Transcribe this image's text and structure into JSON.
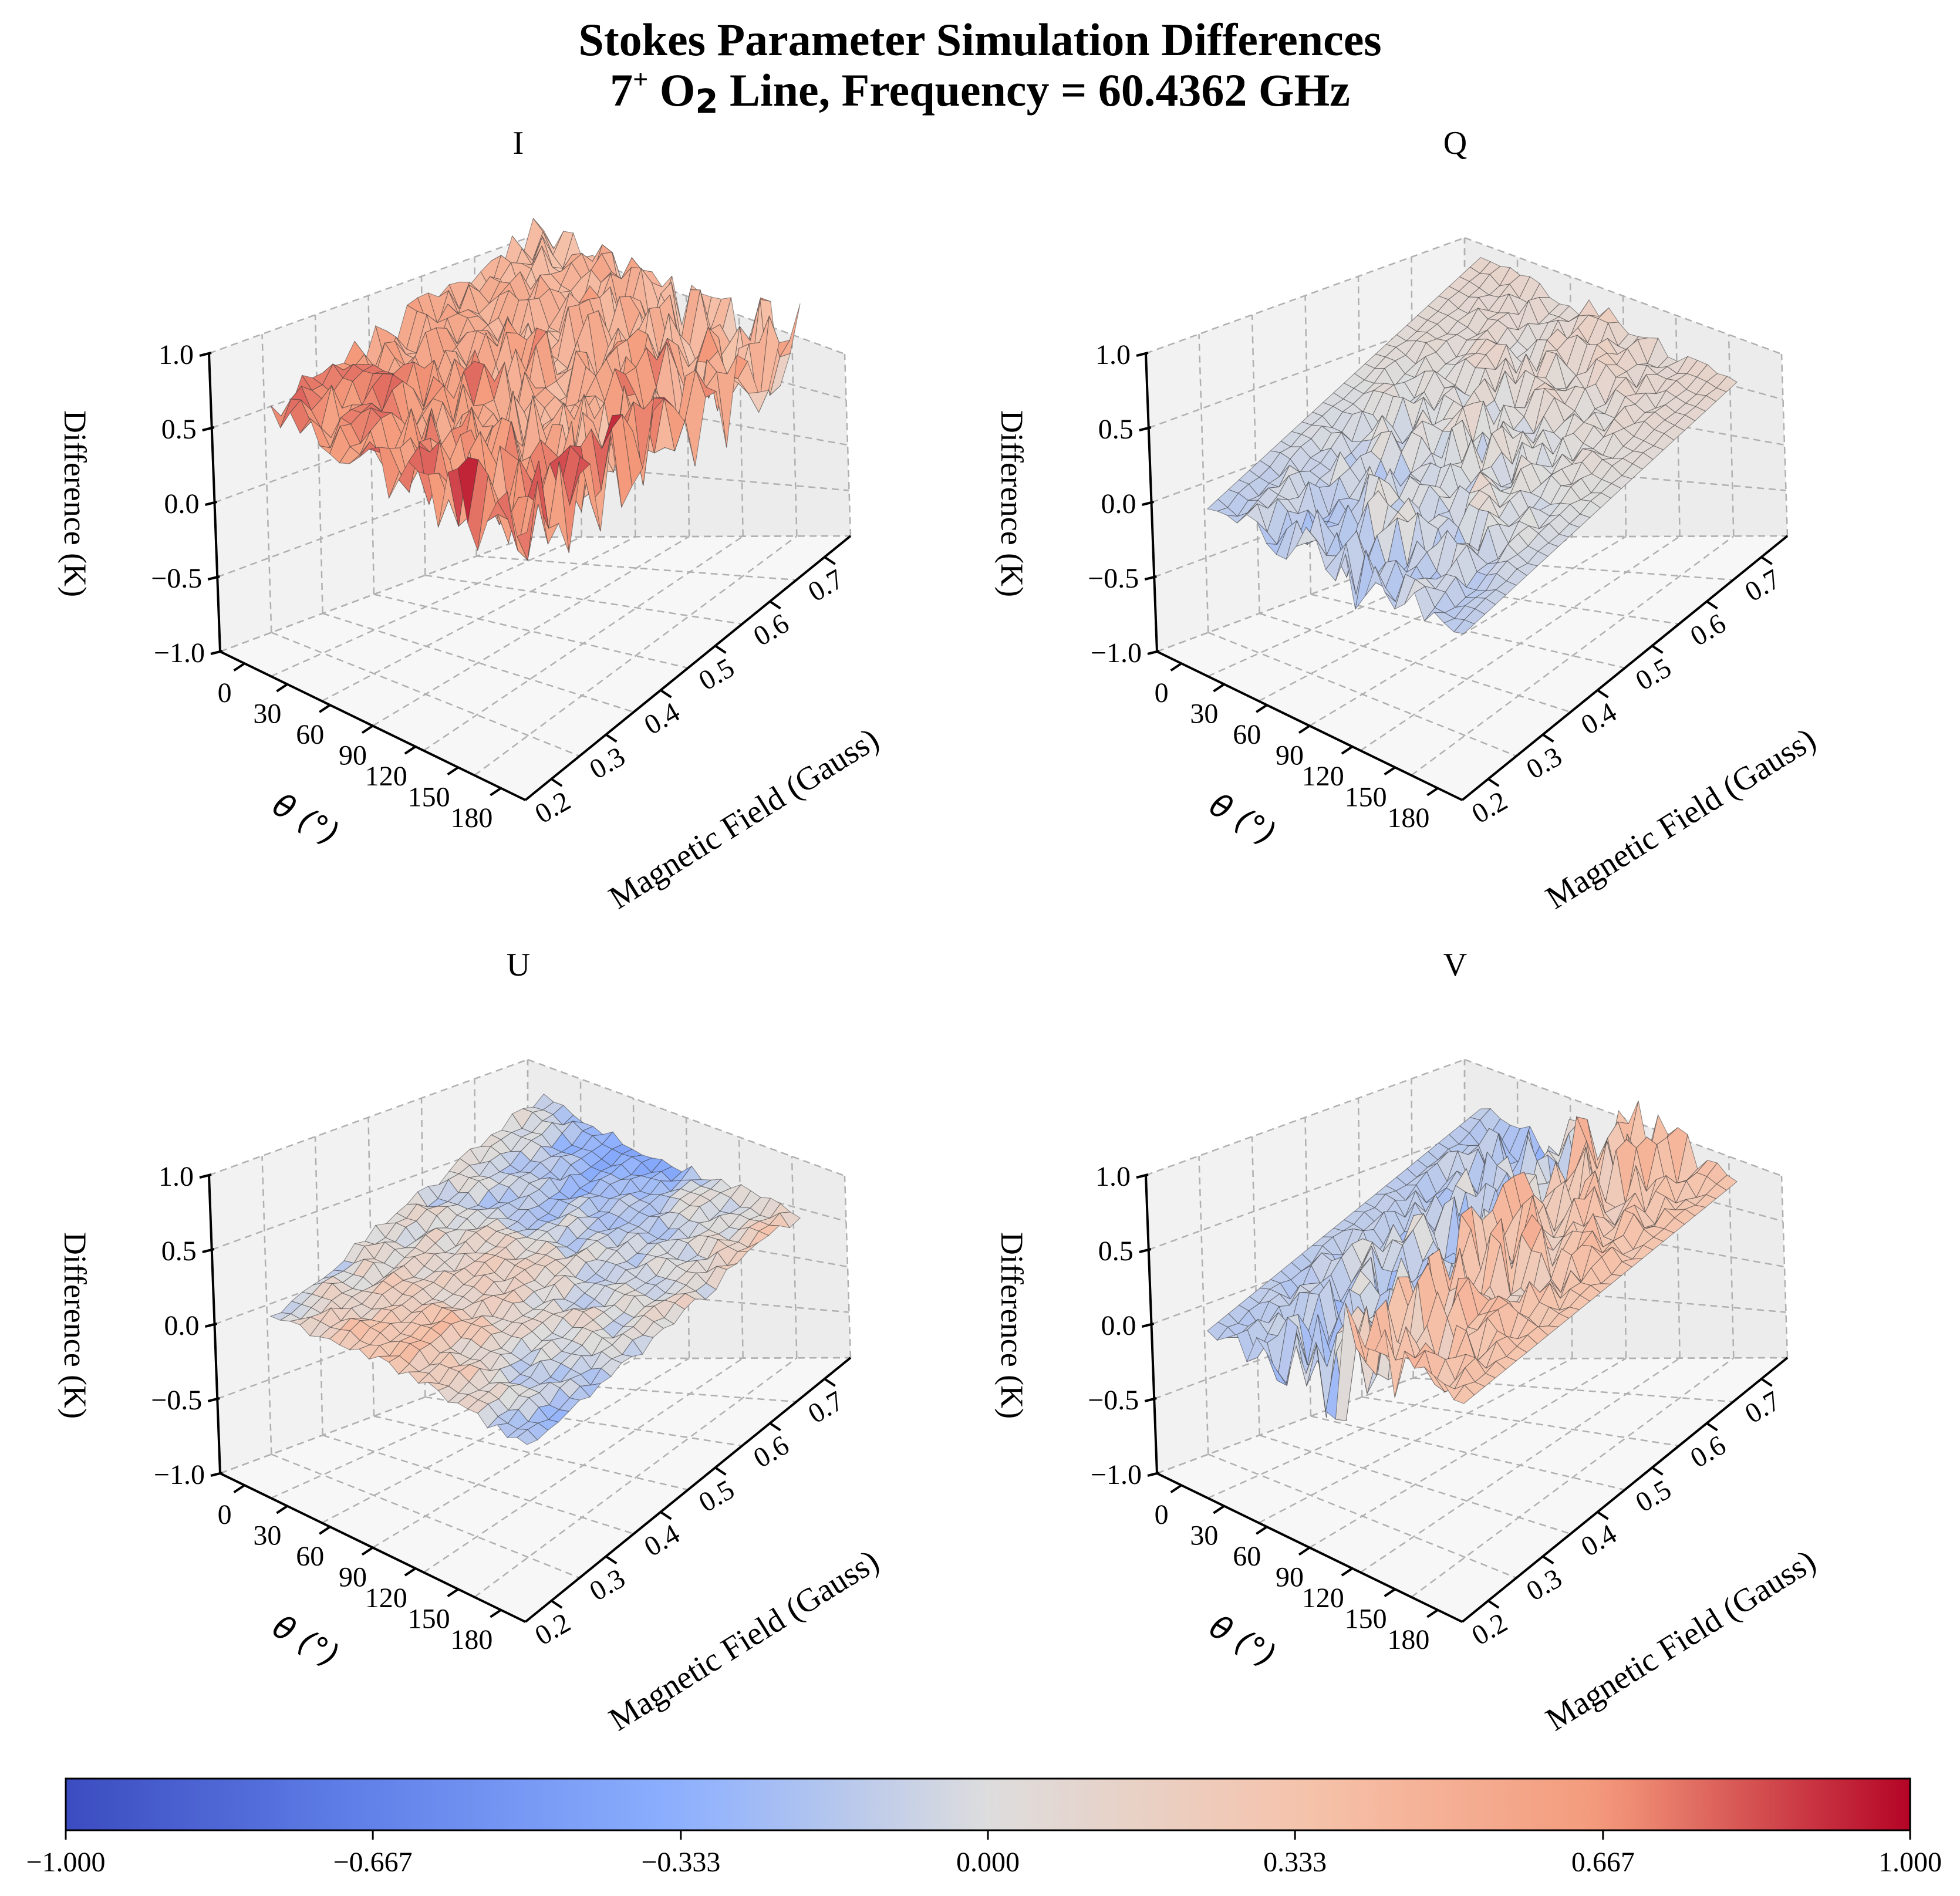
{
  "figure": {
    "title_line1": "Stokes Parameter Simulation Differences",
    "title_line2_pre": "7",
    "title_line2_sup": "+",
    "title_line2_mol": " O",
    "title_line2_sub": "2",
    "title_line2_post": " Line, Frequency = 60.4362 GHz"
  },
  "colors": {
    "neg": "#3b4cc0",
    "mid": "#dddddd",
    "pos": "#b40426"
  },
  "chart_data": [
    {
      "type": "surface3d",
      "title": "I",
      "xlabel": "Magnetic Field (Gauss)",
      "ylabel": "θ (°)",
      "zlabel": "Difference (K)",
      "x_ticks": [
        "0.2",
        "0.3",
        "0.4",
        "0.5",
        "0.6",
        "0.7"
      ],
      "y_ticks": [
        "0",
        "30",
        "60",
        "90",
        "120",
        "150",
        "180"
      ],
      "z_ticks": [
        "−1.0",
        "−0.5",
        "0.0",
        "0.5",
        "1.0"
      ],
      "xlim": [
        0.15,
        0.75
      ],
      "ylim": [
        0,
        180
      ],
      "zlim": [
        -1,
        1
      ],
      "surface_mean": 0.42,
      "surface_noise": 0.28
    },
    {
      "type": "surface3d",
      "title": "Q",
      "xlabel": "Magnetic Field (Gauss)",
      "ylabel": "θ (°)",
      "zlabel": "Difference (K)",
      "x_ticks": [
        "0.2",
        "0.3",
        "0.4",
        "0.5",
        "0.6",
        "0.7"
      ],
      "y_ticks": [
        "0",
        "30",
        "60",
        "90",
        "120",
        "150",
        "180"
      ],
      "z_ticks": [
        "−1.0",
        "−0.5",
        "0.0",
        "0.5",
        "1.0"
      ],
      "xlim": [
        0.15,
        0.75
      ],
      "ylim": [
        0,
        180
      ],
      "zlim": [
        -1,
        1
      ],
      "surface_mean": 0.0,
      "surface_noise": 0.22
    },
    {
      "type": "surface3d",
      "title": "U",
      "xlabel": "Magnetic Field (Gauss)",
      "ylabel": "θ (°)",
      "zlabel": "Difference (K)",
      "x_ticks": [
        "0.2",
        "0.3",
        "0.4",
        "0.5",
        "0.6",
        "0.7"
      ],
      "y_ticks": [
        "0",
        "30",
        "60",
        "90",
        "120",
        "150",
        "180"
      ],
      "z_ticks": [
        "−1.0",
        "−0.5",
        "0.0",
        "0.5",
        "1.0"
      ],
      "xlim": [
        0.15,
        0.75
      ],
      "ylim": [
        0,
        180
      ],
      "zlim": [
        -1,
        1
      ],
      "surface_mean": 0.0,
      "surface_noise": 0.04
    },
    {
      "type": "surface3d",
      "title": "V",
      "xlabel": "Magnetic Field (Gauss)",
      "ylabel": "θ (°)",
      "zlabel": "Difference (K)",
      "x_ticks": [
        "0.2",
        "0.3",
        "0.4",
        "0.5",
        "0.6",
        "0.7"
      ],
      "y_ticks": [
        "0",
        "30",
        "60",
        "90",
        "120",
        "150",
        "180"
      ],
      "z_ticks": [
        "−1.0",
        "−0.5",
        "0.0",
        "0.5",
        "1.0"
      ],
      "xlim": [
        0.15,
        0.75
      ],
      "ylim": [
        0,
        180
      ],
      "zlim": [
        -1,
        1
      ],
      "surface_mean": 0.0,
      "surface_noise": 0.3
    }
  ],
  "colorbar": {
    "ticks": [
      "−1.000",
      "−0.667",
      "−0.333",
      "0.000",
      "0.333",
      "0.667",
      "1.000"
    ],
    "values": [
      -1.0,
      -0.667,
      -0.333,
      0.0,
      0.333,
      0.667,
      1.0
    ],
    "range": [
      -1,
      1
    ],
    "colormap": "coolwarm"
  }
}
